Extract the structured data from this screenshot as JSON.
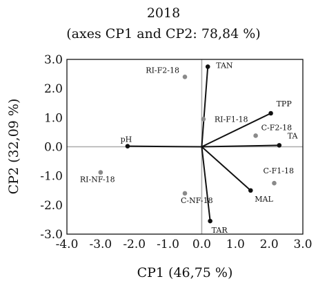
{
  "chart_data": {
    "type": "scatter",
    "title": "2018",
    "subtitle": "(axes CP1 and CP2: 78,84 %)",
    "xlabel": "CP1 (46,75 %)",
    "ylabel": "CP2 (32,09 %)",
    "xlim": [
      -4.0,
      3.0
    ],
    "ylim": [
      -3.0,
      3.0
    ],
    "x_ticks": [
      "-4.0",
      "-3.0",
      "-2.0",
      "-1.0",
      "0.0",
      "1.0",
      "2.0",
      "3.0"
    ],
    "y_ticks": [
      "3.0",
      "2.0",
      "1.0",
      "0.0",
      "-1.0",
      "-2.0",
      "-3.0"
    ],
    "grid": false,
    "colors": {
      "variables": "#111111",
      "observations": "#8a8a8a",
      "zero_axes": "#aaaaaa"
    },
    "variables": [
      {
        "label": "TAN",
        "x": 0.18,
        "y": 2.75
      },
      {
        "label": "TPP",
        "x": 2.05,
        "y": 1.15
      },
      {
        "label": "TA",
        "x": 2.3,
        "y": 0.05
      },
      {
        "label": "MAL",
        "x": 1.45,
        "y": -1.5
      },
      {
        "label": "TAR",
        "x": 0.25,
        "y": -2.55
      },
      {
        "label": "pH",
        "x": -2.2,
        "y": 0.02
      }
    ],
    "observations": [
      {
        "label": "RI-F2-18",
        "x": -0.5,
        "y": 2.4
      },
      {
        "label": "RI-F1-18",
        "x": 0.05,
        "y": 0.95
      },
      {
        "label": "C-F2-18",
        "x": 1.6,
        "y": 0.38
      },
      {
        "label": "C-F1-18",
        "x": 2.15,
        "y": -1.25
      },
      {
        "label": "C-NF-18",
        "x": -0.5,
        "y": -1.6
      },
      {
        "label": "RI-NF-18",
        "x": -3.0,
        "y": -0.88
      }
    ]
  }
}
